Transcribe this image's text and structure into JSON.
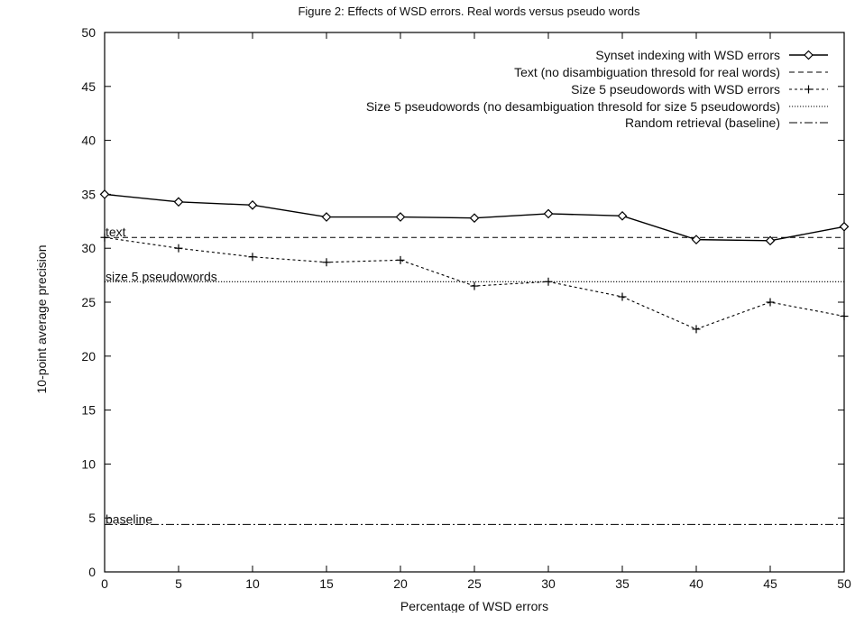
{
  "chart_data": {
    "type": "line",
    "title": "Figure 2: Effects of WSD errors. Real words versus pseudo words",
    "xlabel": "Percentage of WSD errors",
    "ylabel": "10-point average precision",
    "xlim": [
      0,
      50
    ],
    "ylim": [
      0,
      50
    ],
    "xticks": [
      0,
      5,
      10,
      15,
      20,
      25,
      30,
      35,
      40,
      45,
      50
    ],
    "yticks": [
      0,
      5,
      10,
      15,
      20,
      25,
      30,
      35,
      40,
      45,
      50
    ],
    "grid": false,
    "legend_position": "top-right",
    "x": [
      0,
      5,
      10,
      15,
      20,
      25,
      30,
      35,
      40,
      45,
      50
    ],
    "series": [
      {
        "name": "Synset indexing with WSD errors",
        "style": "solid-diamond",
        "values": [
          35.0,
          34.3,
          34.0,
          32.9,
          32.9,
          32.8,
          33.2,
          33.0,
          30.8,
          30.7,
          32.0
        ]
      },
      {
        "name": "Text (no disambiguation thresold for real words)",
        "style": "dashed",
        "values": [
          31.0,
          31.0,
          31.0,
          31.0,
          31.0,
          31.0,
          31.0,
          31.0,
          31.0,
          31.0,
          31.0
        ]
      },
      {
        "name": "Size 5 pseudowords with WSD errors",
        "style": "dotted-plus",
        "values": [
          31.0,
          30.0,
          29.2,
          28.7,
          28.9,
          26.5,
          26.9,
          25.5,
          22.5,
          25.0,
          23.7
        ]
      },
      {
        "name": "Size 5 pseudowords (no desambiguation thresold for size 5 pseudowords)",
        "style": "fine-dotted",
        "values": [
          26.9,
          26.9,
          26.9,
          26.9,
          26.9,
          26.9,
          26.9,
          26.9,
          26.9,
          26.9,
          26.9
        ]
      },
      {
        "name": "Random retrieval (baseline)",
        "style": "dash-dot",
        "values": [
          4.4,
          4.4,
          4.4,
          4.4,
          4.4,
          4.4,
          4.4,
          4.4,
          4.4,
          4.4,
          4.4
        ]
      }
    ],
    "annotations": [
      {
        "text": "text",
        "x": 0,
        "y": 31.0
      },
      {
        "text": "size 5 pseudowords",
        "x": 0,
        "y": 26.9
      },
      {
        "text": "baseline",
        "x": 0,
        "y": 4.4
      }
    ]
  }
}
